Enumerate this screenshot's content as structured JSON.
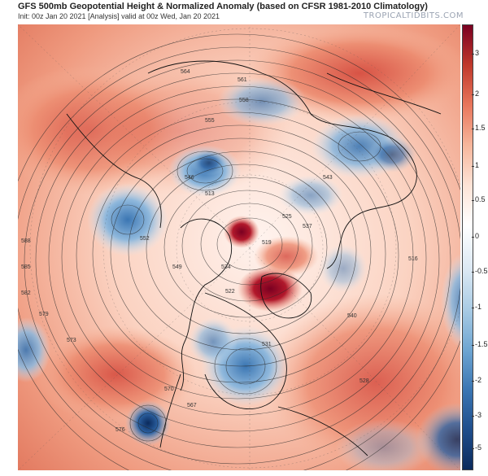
{
  "header": {
    "title": "GFS 500mb Geopotential Height & Normalized Anomaly (based on CFSR 1981-2010 Climatology)",
    "subtitle": "Init: 00z Jan 20 2021   [Analysis]   valid at 00z Wed, Jan 20 2021",
    "brand": "TROPICALTIDBITS.COM"
  },
  "colorbar": {
    "ticks": [
      "3",
      "2",
      "1.5",
      "1",
      "0.5",
      "0",
      "-0.5",
      "-1",
      "-1.5",
      "-2",
      "-3",
      "-5"
    ],
    "colors": [
      "#7a0021",
      "#c0392b",
      "#e8765c",
      "#f6b69b",
      "#fde3d6",
      "#ffffff",
      "#dbe8f3",
      "#a9cbe4",
      "#6fa6d2",
      "#3b76b3",
      "#1f4e8c",
      "#0b2a5c"
    ]
  },
  "contour_labels": [
    "588",
    "585",
    "582",
    "579",
    "576",
    "573",
    "570",
    "567",
    "564",
    "561",
    "558",
    "555",
    "552",
    "549",
    "546",
    "543",
    "540",
    "537",
    "534",
    "531",
    "528",
    "525",
    "522",
    "519",
    "516",
    "513"
  ]
}
